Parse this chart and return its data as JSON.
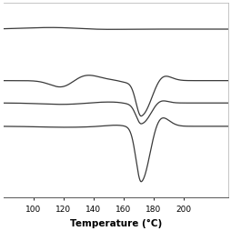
{
  "xlabel": "Temperature (°C)",
  "xlim": [
    80,
    230
  ],
  "ylim": [
    -0.95,
    1.05
  ],
  "xticks": [
    100,
    120,
    140,
    160,
    180,
    200
  ],
  "background_color": "#ffffff",
  "line_color": "#3a3a3a",
  "line_width": 0.9,
  "xlabel_fontsize": 7.5,
  "xlabel_fontweight": "bold",
  "tick_fontsize": 6.5,
  "peak_temp": 172,
  "curve_baselines": [
    0.78,
    0.25,
    0.02,
    -0.22
  ]
}
